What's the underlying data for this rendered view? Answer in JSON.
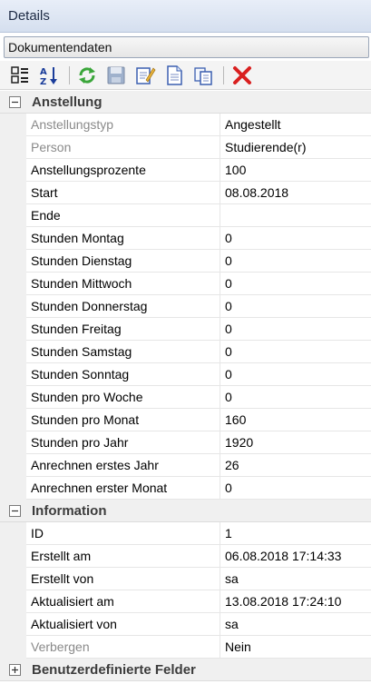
{
  "panel": {
    "title": "Details"
  },
  "selector": {
    "value": "Dokumentendaten"
  },
  "toolbar": {
    "buttons": [
      {
        "icon": "categorized-view-icon"
      },
      {
        "icon": "sort-alphabetical-icon"
      },
      {
        "icon": "refresh-icon"
      },
      {
        "icon": "save-icon"
      },
      {
        "icon": "edit-icon"
      },
      {
        "icon": "new-document-icon"
      },
      {
        "icon": "copy-icon"
      },
      {
        "icon": "delete-icon"
      }
    ]
  },
  "sections": [
    {
      "title": "Anstellung",
      "expanded": true,
      "rows": [
        {
          "label": "Anstellungstyp",
          "value": "Angestellt",
          "dim": true
        },
        {
          "label": "Person",
          "value": "Studierende(r)",
          "dim": true
        },
        {
          "label": "Anstellungsprozente",
          "value": "100"
        },
        {
          "label": "Start",
          "value": "08.08.2018"
        },
        {
          "label": "Ende",
          "value": ""
        },
        {
          "label": "Stunden Montag",
          "value": "0"
        },
        {
          "label": "Stunden Dienstag",
          "value": "0"
        },
        {
          "label": "Stunden Mittwoch",
          "value": "0"
        },
        {
          "label": "Stunden Donnerstag",
          "value": "0"
        },
        {
          "label": "Stunden Freitag",
          "value": "0"
        },
        {
          "label": "Stunden Samstag",
          "value": "0"
        },
        {
          "label": "Stunden Sonntag",
          "value": "0"
        },
        {
          "label": "Stunden pro Woche",
          "value": "0"
        },
        {
          "label": "Stunden pro Monat",
          "value": "160"
        },
        {
          "label": "Stunden pro Jahr",
          "value": "1920"
        },
        {
          "label": "Anrechnen erstes Jahr",
          "value": "26"
        },
        {
          "label": "Anrechnen erster Monat",
          "value": "0"
        }
      ]
    },
    {
      "title": "Information",
      "expanded": true,
      "rows": [
        {
          "label": "ID",
          "value": "1"
        },
        {
          "label": "Erstellt am",
          "value": "06.08.2018 17:14:33"
        },
        {
          "label": "Erstellt von",
          "value": "sa"
        },
        {
          "label": "Aktualisiert am",
          "value": "13.08.2018 17:24:10"
        },
        {
          "label": "Aktualisiert von",
          "value": "sa"
        },
        {
          "label": "Verbergen",
          "value": "Nein",
          "dim": true
        }
      ]
    },
    {
      "title": "Benutzerdefinierte Felder",
      "expanded": false,
      "rows": []
    }
  ]
}
